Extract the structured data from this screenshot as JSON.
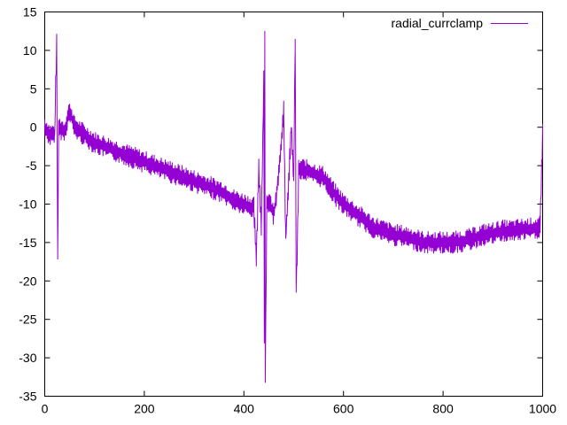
{
  "chart_data": {
    "type": "line",
    "title": "",
    "xlabel": "",
    "ylabel": "",
    "xlim": [
      0,
      1000
    ],
    "ylim": [
      -35,
      15
    ],
    "x_ticks": [
      0,
      200,
      400,
      600,
      800,
      1000
    ],
    "y_ticks": [
      -35,
      -30,
      -25,
      -20,
      -15,
      -10,
      -5,
      0,
      5,
      10,
      15
    ],
    "grid": false,
    "legend": {
      "position": "top-right"
    },
    "series": [
      {
        "name": "radial_currclamp",
        "color": "#9400d3",
        "points": [
          [
            0,
            0
          ],
          [
            10,
            -1
          ],
          [
            20,
            -1
          ],
          [
            24,
            11.5
          ],
          [
            26,
            -17.2
          ],
          [
            28,
            0
          ],
          [
            40,
            -0.5
          ],
          [
            48,
            1.8
          ],
          [
            52,
            1.8
          ],
          [
            60,
            0
          ],
          [
            80,
            -1
          ],
          [
            100,
            -2
          ],
          [
            120,
            -2.5
          ],
          [
            140,
            -3
          ],
          [
            160,
            -3.5
          ],
          [
            180,
            -4
          ],
          [
            200,
            -4.5
          ],
          [
            220,
            -5
          ],
          [
            240,
            -5.5
          ],
          [
            260,
            -6
          ],
          [
            280,
            -6.5
          ],
          [
            300,
            -7
          ],
          [
            320,
            -7.5
          ],
          [
            340,
            -8
          ],
          [
            360,
            -8.5
          ],
          [
            380,
            -9.5
          ],
          [
            400,
            -10
          ],
          [
            420,
            -10.5
          ],
          [
            425,
            -17.2
          ],
          [
            430,
            -5
          ],
          [
            435,
            -13
          ],
          [
            440,
            6.5
          ],
          [
            441,
            -27.5
          ],
          [
            442,
            11.5
          ],
          [
            443,
            -32.5
          ],
          [
            446,
            -10
          ],
          [
            450,
            -9.5
          ],
          [
            460,
            -11.5
          ],
          [
            470,
            -6
          ],
          [
            480,
            2
          ],
          [
            484,
            -14.5
          ],
          [
            490,
            -7
          ],
          [
            495,
            0
          ],
          [
            500,
            -7
          ],
          [
            503,
            11.5
          ],
          [
            505,
            -21
          ],
          [
            507,
            -17
          ],
          [
            510,
            -5.5
          ],
          [
            520,
            -5.5
          ],
          [
            540,
            -6
          ],
          [
            560,
            -6.5
          ],
          [
            580,
            -8.5
          ],
          [
            600,
            -10
          ],
          [
            620,
            -11
          ],
          [
            640,
            -12
          ],
          [
            660,
            -13
          ],
          [
            680,
            -13.5
          ],
          [
            700,
            -14
          ],
          [
            720,
            -14.2
          ],
          [
            740,
            -14.5
          ],
          [
            760,
            -15
          ],
          [
            780,
            -15
          ],
          [
            800,
            -15
          ],
          [
            820,
            -15
          ],
          [
            840,
            -14.8
          ],
          [
            860,
            -14.5
          ],
          [
            880,
            -14
          ],
          [
            900,
            -13.8
          ],
          [
            920,
            -13.5
          ],
          [
            940,
            -13.5
          ],
          [
            960,
            -13.3
          ],
          [
            980,
            -13.2
          ],
          [
            995,
            -13
          ],
          [
            1000,
            -1
          ]
        ],
        "noise_amplitude": 1.5
      }
    ]
  }
}
